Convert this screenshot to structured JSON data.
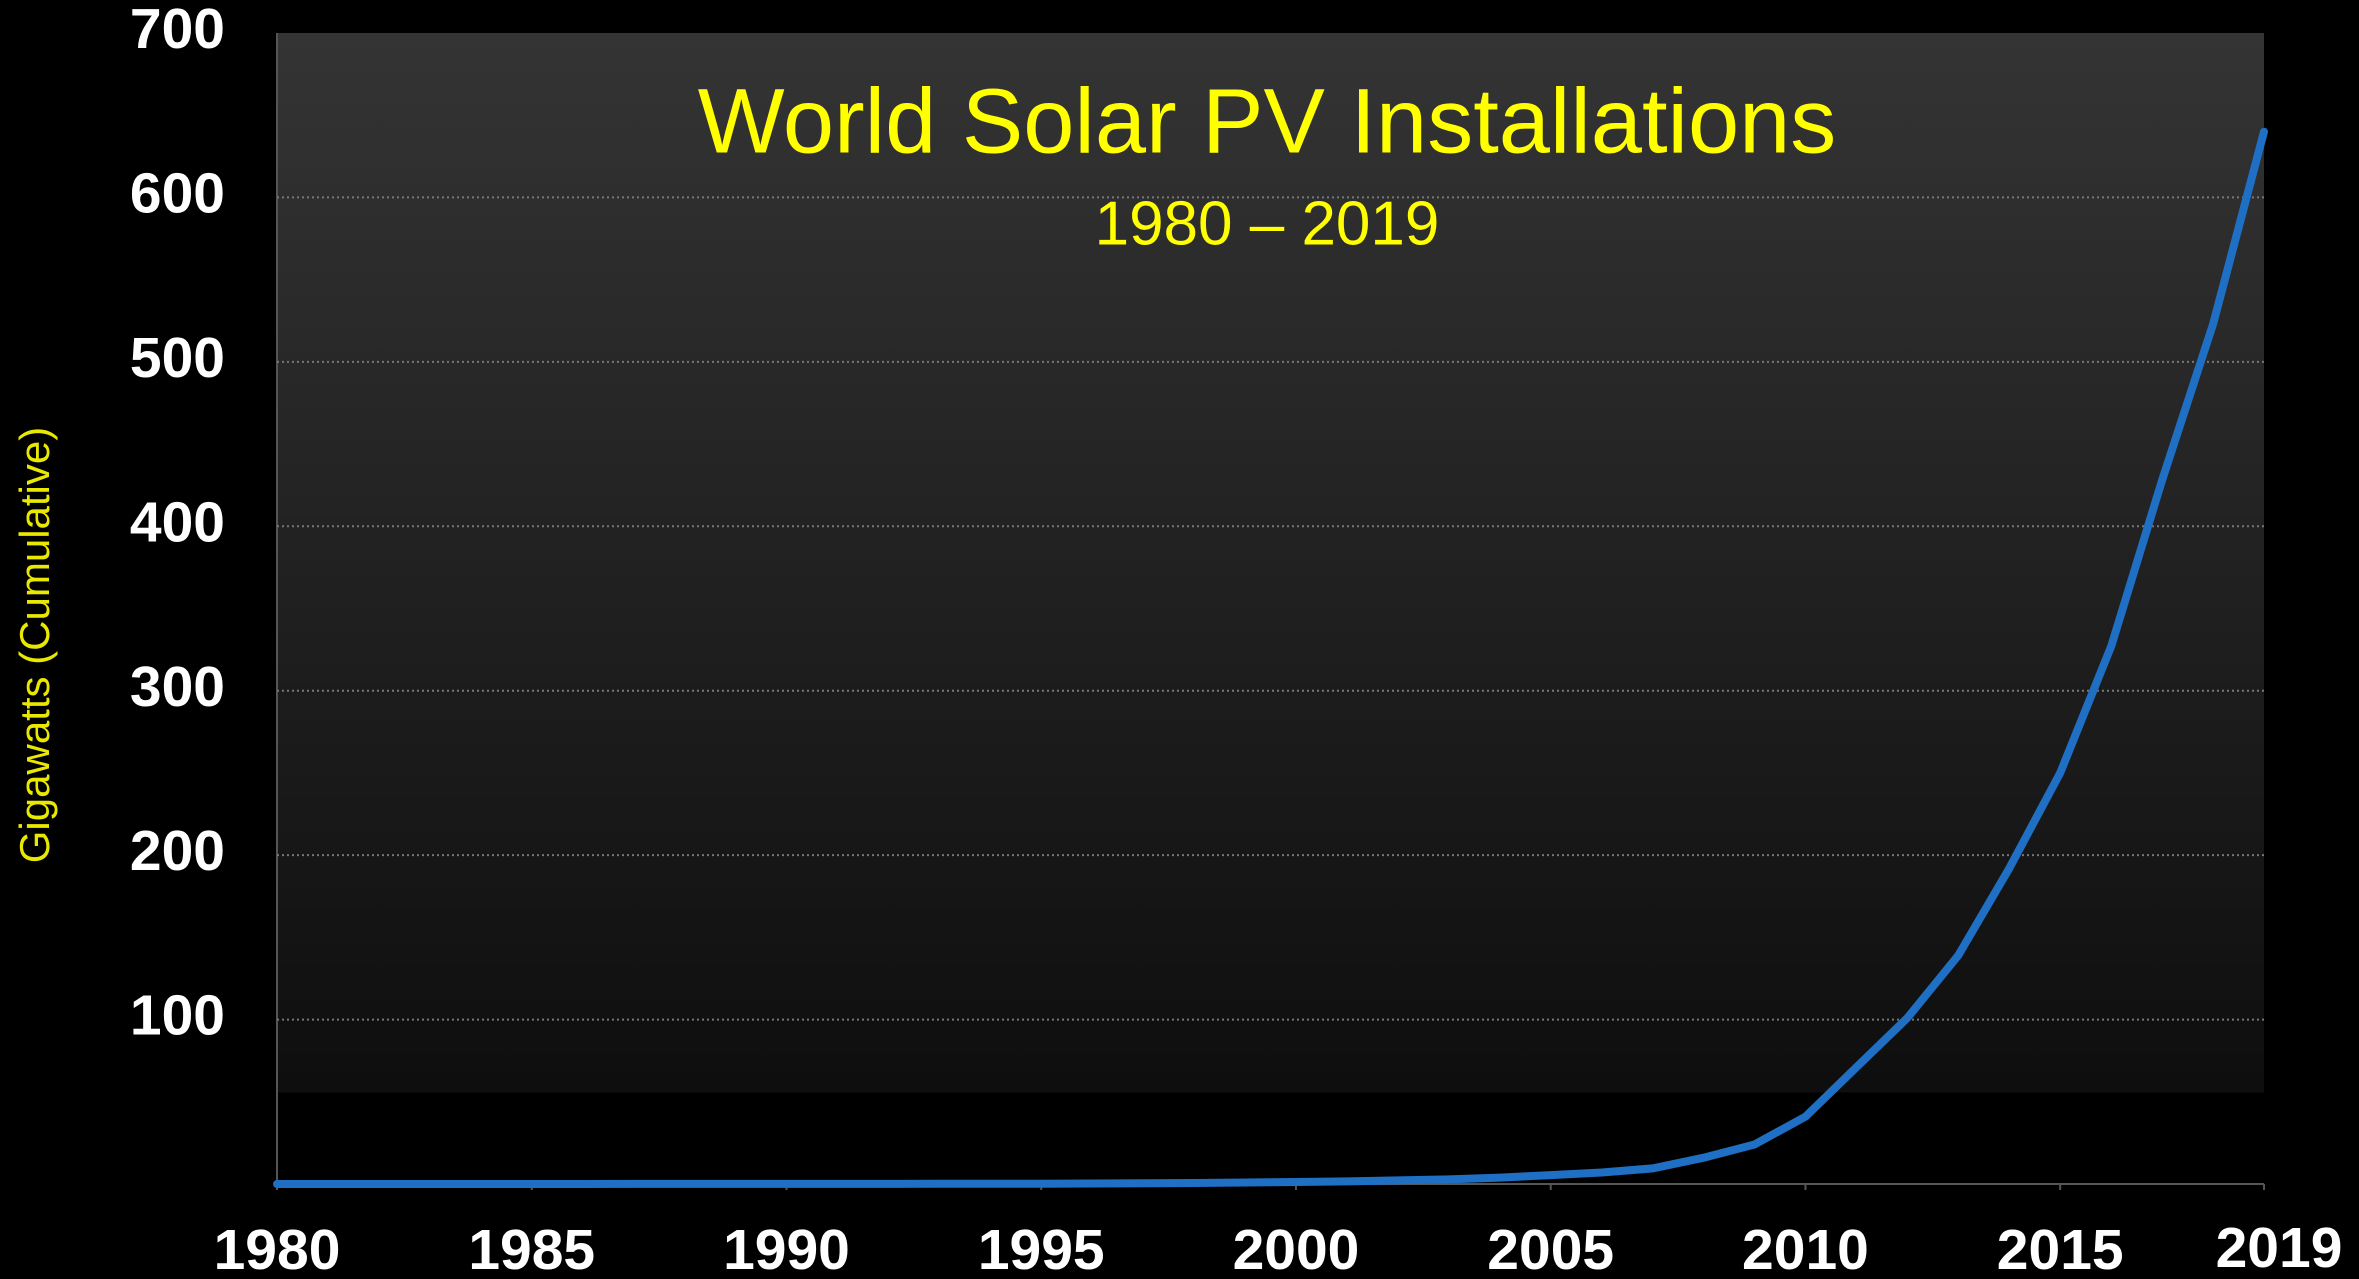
{
  "chart_data": {
    "type": "line",
    "title": "World Solar PV Installations",
    "subtitle": "1980 – 2019",
    "y_label": "Gigawatts (Cumulative)",
    "x": [
      1980,
      1981,
      1982,
      1983,
      1984,
      1985,
      1986,
      1987,
      1988,
      1989,
      1990,
      1991,
      1992,
      1993,
      1994,
      1995,
      1996,
      1997,
      1998,
      1999,
      2000,
      2001,
      2002,
      2003,
      2004,
      2005,
      2006,
      2007,
      2008,
      2009,
      2010,
      2011,
      2012,
      2013,
      2014,
      2015,
      2016,
      2017,
      2018,
      2019
    ],
    "values": [
      0.01,
      0.01,
      0.02,
      0.02,
      0.02,
      0.03,
      0.03,
      0.04,
      0.04,
      0.05,
      0.06,
      0.07,
      0.08,
      0.1,
      0.1,
      0.2,
      0.3,
      0.4,
      0.6,
      0.9,
      1.2,
      1.6,
      2.2,
      2.8,
      3.9,
      5.4,
      7,
      9.5,
      16,
      24,
      41,
      71,
      101,
      139,
      192,
      250,
      327,
      428,
      523,
      640
    ],
    "color": "#1f6fc5",
    "xlim": [
      1980,
      2019
    ],
    "xticks": [
      1980,
      1985,
      1990,
      1995,
      2000,
      2005,
      2010,
      2015,
      2019
    ],
    "ylim": [
      0,
      700
    ],
    "yticks": [
      100,
      200,
      300,
      400,
      500,
      600,
      700
    ],
    "grid": true
  }
}
